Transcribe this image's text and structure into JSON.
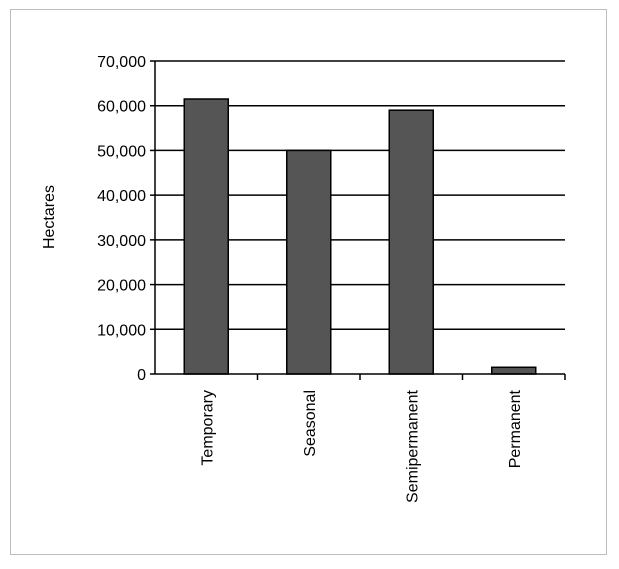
{
  "chart_data": {
    "type": "bar",
    "title": "",
    "xlabel": "",
    "ylabel": "Hectares",
    "categories": [
      "Temporary",
      "Seasonal",
      "Semipermanent",
      "Permanent"
    ],
    "values": [
      61500,
      50000,
      59000,
      1500
    ],
    "ylim": [
      0,
      70000
    ],
    "yticks": [
      0,
      10000,
      20000,
      30000,
      40000,
      50000,
      60000,
      70000
    ],
    "ytick_labels": [
      "0",
      "10,000",
      "20,000",
      "30,000",
      "40,000",
      "50,000",
      "60,000",
      "70,000"
    ],
    "grid": true,
    "legend": "none",
    "colors": {
      "bar": "#555555",
      "bar_edge": "#000000",
      "grid": "#000000",
      "frame": "#bdbdbd"
    }
  }
}
